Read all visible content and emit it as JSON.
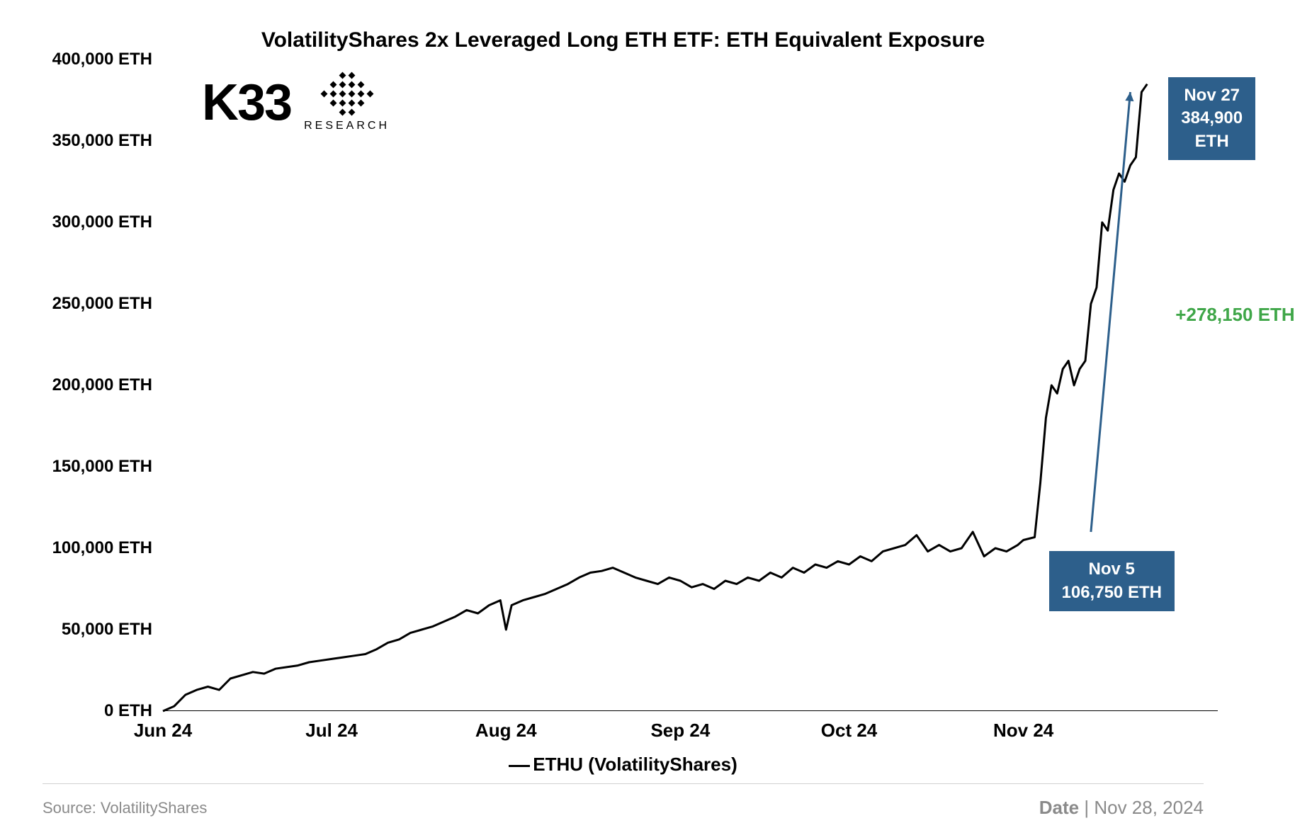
{
  "chart": {
    "type": "line",
    "title": "VolatilityShares 2x Leveraged Long ETH ETF: ETH Equivalent Exposure",
    "series_name": "ETHU (VolatilityShares)",
    "line_color": "#000000",
    "line_width": 3,
    "background_color": "#ffffff",
    "ylim": [
      0,
      400000
    ],
    "y_ticks": [
      0,
      50000,
      100000,
      150000,
      200000,
      250000,
      300000,
      350000,
      400000
    ],
    "y_tick_labels": [
      "0 ETH",
      "50,000 ETH",
      "100,000 ETH",
      "150,000 ETH",
      "200,000 ETH",
      "250,000 ETH",
      "300,000 ETH",
      "350,000 ETH",
      "400,000 ETH"
    ],
    "x_ticks": [
      0,
      30,
      61,
      92,
      122,
      153
    ],
    "x_tick_labels": [
      "Jun 24",
      "Jul 24",
      "Aug 24",
      "Sep 24",
      "Oct 24",
      "Nov 24"
    ],
    "x_range": [
      0,
      180
    ],
    "data": [
      [
        0,
        0
      ],
      [
        2,
        3000
      ],
      [
        4,
        10000
      ],
      [
        6,
        13000
      ],
      [
        8,
        15000
      ],
      [
        10,
        13000
      ],
      [
        12,
        20000
      ],
      [
        14,
        22000
      ],
      [
        16,
        24000
      ],
      [
        18,
        23000
      ],
      [
        20,
        26000
      ],
      [
        22,
        27000
      ],
      [
        24,
        28000
      ],
      [
        26,
        30000
      ],
      [
        28,
        31000
      ],
      [
        30,
        32000
      ],
      [
        32,
        33000
      ],
      [
        34,
        34000
      ],
      [
        36,
        35000
      ],
      [
        38,
        38000
      ],
      [
        40,
        42000
      ],
      [
        42,
        44000
      ],
      [
        44,
        48000
      ],
      [
        46,
        50000
      ],
      [
        48,
        52000
      ],
      [
        50,
        55000
      ],
      [
        52,
        58000
      ],
      [
        54,
        62000
      ],
      [
        56,
        60000
      ],
      [
        58,
        65000
      ],
      [
        60,
        68000
      ],
      [
        61,
        50000
      ],
      [
        62,
        65000
      ],
      [
        64,
        68000
      ],
      [
        66,
        70000
      ],
      [
        68,
        72000
      ],
      [
        70,
        75000
      ],
      [
        72,
        78000
      ],
      [
        74,
        82000
      ],
      [
        76,
        85000
      ],
      [
        78,
        86000
      ],
      [
        80,
        88000
      ],
      [
        82,
        85000
      ],
      [
        84,
        82000
      ],
      [
        86,
        80000
      ],
      [
        88,
        78000
      ],
      [
        90,
        82000
      ],
      [
        92,
        80000
      ],
      [
        94,
        76000
      ],
      [
        96,
        78000
      ],
      [
        98,
        75000
      ],
      [
        100,
        80000
      ],
      [
        102,
        78000
      ],
      [
        104,
        82000
      ],
      [
        106,
        80000
      ],
      [
        108,
        85000
      ],
      [
        110,
        82000
      ],
      [
        112,
        88000
      ],
      [
        114,
        85000
      ],
      [
        116,
        90000
      ],
      [
        118,
        88000
      ],
      [
        120,
        92000
      ],
      [
        122,
        90000
      ],
      [
        124,
        95000
      ],
      [
        126,
        92000
      ],
      [
        128,
        98000
      ],
      [
        130,
        100000
      ],
      [
        132,
        102000
      ],
      [
        134,
        108000
      ],
      [
        136,
        98000
      ],
      [
        138,
        102000
      ],
      [
        140,
        98000
      ],
      [
        142,
        100000
      ],
      [
        144,
        110000
      ],
      [
        146,
        95000
      ],
      [
        148,
        100000
      ],
      [
        150,
        98000
      ],
      [
        152,
        102000
      ],
      [
        153,
        105000
      ],
      [
        155,
        106750
      ],
      [
        156,
        140000
      ],
      [
        157,
        180000
      ],
      [
        158,
        200000
      ],
      [
        159,
        195000
      ],
      [
        160,
        210000
      ],
      [
        161,
        215000
      ],
      [
        162,
        200000
      ],
      [
        163,
        210000
      ],
      [
        164,
        215000
      ],
      [
        165,
        250000
      ],
      [
        166,
        260000
      ],
      [
        167,
        300000
      ],
      [
        168,
        295000
      ],
      [
        169,
        320000
      ],
      [
        170,
        330000
      ],
      [
        171,
        325000
      ],
      [
        172,
        335000
      ],
      [
        173,
        340000
      ],
      [
        174,
        380000
      ],
      [
        175,
        384900
      ]
    ]
  },
  "callouts": {
    "end": {
      "date": "Nov 27",
      "value": "384,900 ETH"
    },
    "start": {
      "date": "Nov 5",
      "value": "106,750 ETH"
    },
    "increase": "+278,150 ETH",
    "callout_bg": "#2d5f8b",
    "callout_text_color": "#ffffff",
    "increase_color": "#3fa648",
    "arrow_color": "#2d5f8b"
  },
  "logo": {
    "text": "K33",
    "sub": "RESEARCH"
  },
  "footer": {
    "source": "Source: VolatilityShares",
    "date_prefix": "Date",
    "date_value": "Nov 28, 2024"
  }
}
